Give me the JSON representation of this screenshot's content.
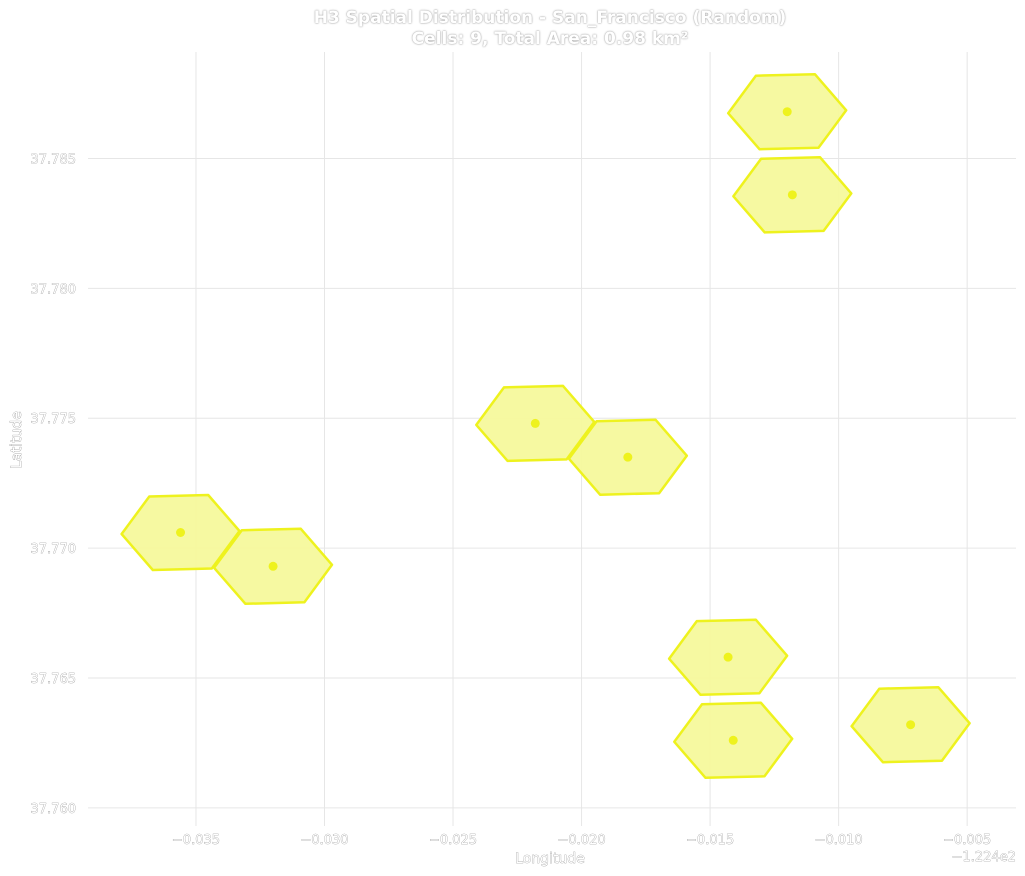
{
  "title": {
    "line1": "H3 Spatial Distribution - San_Francisco (Random)",
    "line2": "Cells: 9, Total Area: 0.98 km²"
  },
  "chart_data": {
    "type": "scatter",
    "title": "H3 Spatial Distribution - San_Francisco (Random)",
    "subtitle": "Cells: 9, Total Area: 0.98 km²",
    "xlabel": "Longitude",
    "ylabel": "Latitude",
    "x_offset_label": "−1.224e2",
    "xlim": [
      -0.0392,
      -0.0031
    ],
    "ylim": [
      37.7593,
      37.7891
    ],
    "xticks": [
      -0.035,
      -0.03,
      -0.025,
      -0.02,
      -0.015,
      -0.01,
      -0.005
    ],
    "xtick_labels": [
      "−0.035",
      "−0.030",
      "−0.025",
      "−0.020",
      "−0.015",
      "−0.010",
      "−0.005"
    ],
    "yticks": [
      37.76,
      37.765,
      37.77,
      37.775,
      37.78,
      37.785
    ],
    "ytick_labels": [
      "37.760",
      "37.765",
      "37.770",
      "37.775",
      "37.780",
      "37.785"
    ],
    "grid": true,
    "colors": {
      "fill": "#f6f99c",
      "edge": "#eef21e",
      "point": "#eef21e",
      "grid": "#e6e6e6"
    },
    "cells": [
      {
        "lon": -0.012,
        "lat": 37.7868
      },
      {
        "lon": -0.0118,
        "lat": 37.7836
      },
      {
        "lon": -0.0218,
        "lat": 37.7748
      },
      {
        "lon": -0.0182,
        "lat": 37.7735
      },
      {
        "lon": -0.0356,
        "lat": 37.7706
      },
      {
        "lon": -0.032,
        "lat": 37.7693
      },
      {
        "lon": -0.0143,
        "lat": 37.7658
      },
      {
        "lon": -0.0141,
        "lat": 37.7626
      },
      {
        "lon": -0.0072,
        "lat": 37.7632
      }
    ]
  }
}
